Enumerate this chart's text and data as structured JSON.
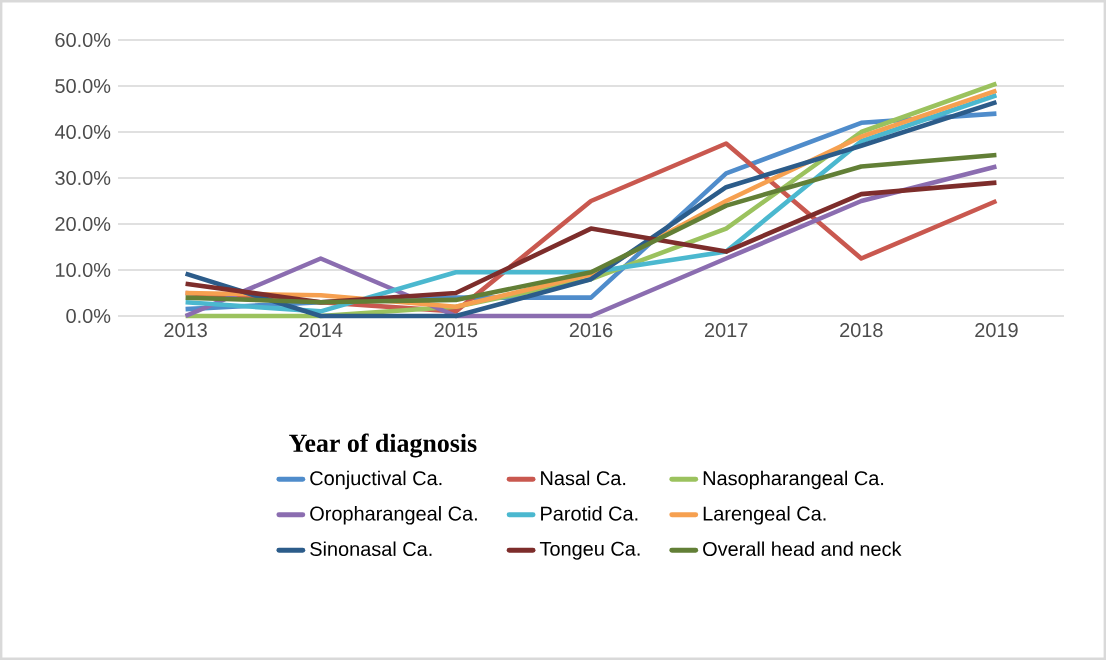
{
  "chart_data": {
    "type": "line",
    "xlabel": "Year of diagnosis",
    "categories": [
      "2013",
      "2014",
      "2015",
      "2016",
      "2017",
      "2018",
      "2019"
    ],
    "ylim": [
      0,
      60
    ],
    "yticks": [
      {
        "value": 0,
        "label": "0.0%"
      },
      {
        "value": 10,
        "label": "10.0%"
      },
      {
        "value": 20,
        "label": "20.0%"
      },
      {
        "value": 30,
        "label": "30.0%"
      },
      {
        "value": 40,
        "label": "40.0%"
      },
      {
        "value": 50,
        "label": "50.0%"
      },
      {
        "value": 60,
        "label": "60.0%"
      }
    ],
    "grid": "y",
    "legend": "bottom",
    "marker": "none",
    "line_style": "solid",
    "series": [
      {
        "name": "Conjuctival Ca.",
        "color": "#4f8ccb",
        "values": [
          1.5,
          3,
          4,
          4,
          31,
          42,
          44
        ]
      },
      {
        "name": "Nasal Ca.",
        "color": "#c9584f",
        "values": [
          5,
          3,
          1,
          25,
          37.5,
          12.5,
          25
        ]
      },
      {
        "name": "Nasopharangeal Ca.",
        "color": "#9bc25e",
        "values": [
          0,
          0,
          2,
          8,
          19,
          40,
          50.5
        ]
      },
      {
        "name": "Oropharangeal Ca.",
        "color": "#8b6db0",
        "values": [
          0,
          12.5,
          0,
          0,
          12.5,
          25,
          32.5
        ]
      },
      {
        "name": "Parotid Ca.",
        "color": "#4bb8cf",
        "values": [
          3,
          1,
          9.5,
          9.5,
          14,
          38,
          48
        ]
      },
      {
        "name": "Larengeal Ca.",
        "color": "#f6a050",
        "values": [
          5,
          4.5,
          2,
          9,
          25,
          39,
          49
        ]
      },
      {
        "name": "Sinonasal Ca.",
        "color": "#2c5c8a",
        "values": [
          9.2,
          0,
          0,
          8,
          28,
          37,
          46.5
        ]
      },
      {
        "name": "Tongeu Ca.",
        "color": "#7d2d2b",
        "values": [
          7,
          3,
          5,
          19,
          14,
          26.5,
          29
        ]
      },
      {
        "name": "Overall head and neck",
        "color": "#627f36",
        "values": [
          4,
          3,
          3.5,
          9.5,
          24,
          32.5,
          35
        ]
      }
    ]
  }
}
